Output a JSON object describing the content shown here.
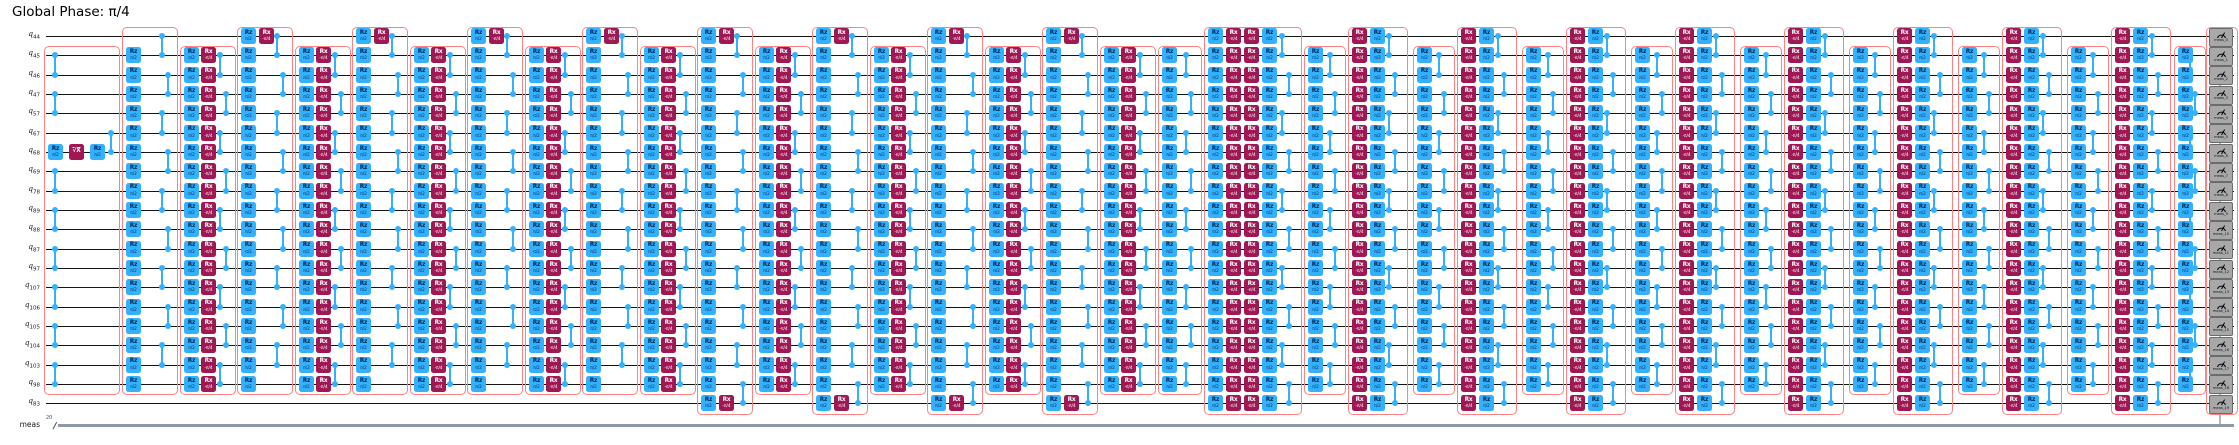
{
  "title": "Global Phase: π/4",
  "qubit_register": "q",
  "qubit_subscripts": [
    "44",
    "45",
    "46",
    "47",
    "57",
    "67",
    "68",
    "69",
    "78",
    "89",
    "88",
    "87",
    "97",
    "107",
    "106",
    "105",
    "104",
    "103",
    "98",
    "83"
  ],
  "classical": {
    "label": "meas",
    "size": "20"
  },
  "gates": {
    "rz": {
      "label": "Rz",
      "sub": "π/2",
      "fill": "#33B1FF",
      "text": "#002a52"
    },
    "rx": {
      "label": "Rx",
      "sub": "-π/4",
      "fill": "#9F1853",
      "text": "#ffffff"
    },
    "sx": {
      "label": "√X",
      "sub": "",
      "fill": "#9F1853",
      "text": "#ffffff"
    }
  },
  "colors": {
    "cz": "#33B1FF",
    "barrier": "#FF8181",
    "wire": "#141414",
    "classical_wire": "#8E99A4",
    "meas_fill": "#A8A8A8",
    "meas_border": "#6b6b6b",
    "meas_icon": "#000000",
    "meas_text": "#111111"
  },
  "meas_labels": [
    "meas_0",
    "meas_1",
    "meas_2",
    "meas_3",
    "meas_4",
    "meas_5",
    "meas_6",
    "meas_7",
    "meas_8",
    "meas_9",
    "meas_10",
    "meas_11",
    "meas_12",
    "meas_13",
    "meas_14",
    "meas_15",
    "meas_16",
    "meas_17",
    "meas_18",
    "meas_19"
  ],
  "structure": {
    "prep": {
      "cz_pairs": [
        [
          1,
          2
        ],
        [
          3,
          4
        ],
        [
          7,
          8
        ],
        [
          9,
          10
        ],
        [
          11,
          12
        ],
        [
          13,
          14
        ],
        [
          15,
          16
        ],
        [
          17,
          18
        ]
      ],
      "prep_qubit_row": 6,
      "prep_gates": [
        "rz",
        "sx",
        "rz"
      ],
      "late_cz_pairs": [
        [
          5,
          6
        ]
      ]
    },
    "cz_odd_full": [
      [
        0,
        1
      ],
      [
        2,
        3
      ],
      [
        4,
        5
      ],
      [
        6,
        7
      ],
      [
        8,
        9
      ],
      [
        10,
        11
      ],
      [
        12,
        13
      ],
      [
        14,
        15
      ],
      [
        16,
        17
      ],
      [
        18,
        19
      ]
    ],
    "cz_even": [
      [
        1,
        2
      ],
      [
        3,
        4
      ],
      [
        5,
        6
      ],
      [
        7,
        8
      ],
      [
        9,
        10
      ],
      [
        11,
        12
      ],
      [
        13,
        14
      ],
      [
        15,
        16
      ],
      [
        17,
        18
      ]
    ],
    "first_half_units": 9,
    "q83_from_unit": 5,
    "second_half_units": 8,
    "a_box_mid_gates": [
      "rz"
    ],
    "a_box_edge_gates": [
      "rz",
      "rx"
    ],
    "b_box_gates": [
      "rz",
      "rx"
    ],
    "center_gates": [
      "rz",
      "rx",
      "rx",
      "rz"
    ],
    "a2_box_gates": [
      "rx",
      "rz"
    ],
    "b2_box_gates": [
      "rz"
    ]
  }
}
